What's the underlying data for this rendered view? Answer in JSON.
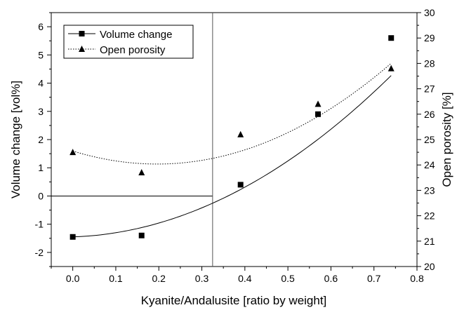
{
  "chart_data": {
    "type": "scatter",
    "xlabel": "Kyanite/Andalusite [ratio by weight]",
    "ylabel_left": "Volume change [vol%]",
    "ylabel_right": "Open porosity [%]",
    "xlim": [
      -0.05,
      0.8
    ],
    "ylim_left": [
      -2.5,
      6.5
    ],
    "ylim_right": [
      20,
      30
    ],
    "x_ticks": [
      "0.0",
      "0.1",
      "0.2",
      "0.3",
      "0.4",
      "0.5",
      "0.6",
      "0.7",
      "0.8"
    ],
    "y_left_ticks": [
      "-2",
      "-1",
      "0",
      "1",
      "2",
      "3",
      "4",
      "5",
      "6"
    ],
    "y_right_ticks": [
      "20",
      "21",
      "22",
      "23",
      "24",
      "25",
      "26",
      "27",
      "28",
      "29",
      "30"
    ],
    "grid": false,
    "legend_position": "top-left",
    "series": [
      {
        "name": "Volume change",
        "axis": "left",
        "marker": "square",
        "line": "solid",
        "x": [
          0.0,
          0.16,
          0.39,
          0.57,
          0.74
        ],
        "y": [
          -1.45,
          -1.4,
          0.4,
          2.9,
          5.6
        ],
        "fit_poly": [
          -1.45,
          0.5,
          9.77
        ]
      },
      {
        "name": "Open porosity",
        "axis": "right",
        "marker": "triangle",
        "line": "dotted",
        "x": [
          0.0,
          0.16,
          0.39,
          0.57,
          0.74
        ],
        "y": [
          24.5,
          23.7,
          25.2,
          26.4,
          27.8
        ],
        "fit_poly": [
          24.55,
          -5.25,
          13.4
        ]
      }
    ],
    "reference_lines": [
      {
        "orientation": "horizontal",
        "axis": "left",
        "value": 0
      },
      {
        "orientation": "vertical",
        "value": 0.325
      }
    ]
  }
}
